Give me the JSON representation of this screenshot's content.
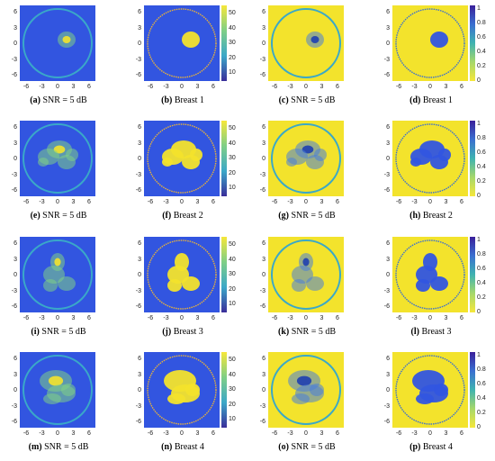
{
  "colors": {
    "cold": "#3255e0",
    "warm": "#f3e32c",
    "ring": "#3aa8c8"
  },
  "ticks": {
    "y": [
      "6",
      "3",
      "0",
      "-3",
      "-6"
    ],
    "x": [
      "-6",
      "-3",
      "0",
      "3",
      "6"
    ],
    "cbar_sigma": [
      "50",
      "40",
      "30",
      "20",
      "10"
    ],
    "cbar_ratio": [
      "1",
      "0.8",
      "0.6",
      "0.4",
      "0.2",
      "0"
    ]
  },
  "panels": [
    {
      "tag": "(a)",
      "text": "SNR = 5 dB",
      "kind": "recon",
      "bg": "cold"
    },
    {
      "tag": "(b)",
      "text": "Breast 1",
      "kind": "truth",
      "bg": "cold",
      "cbar": "sigma"
    },
    {
      "tag": "(c)",
      "text": "SNR = 5 dB",
      "kind": "recon",
      "bg": "warm"
    },
    {
      "tag": "(d)",
      "text": "Breast 1",
      "kind": "truth",
      "bg": "warm",
      "cbar": "ratio"
    },
    {
      "tag": "(e)",
      "text": "SNR = 5 dB",
      "kind": "recon",
      "bg": "cold"
    },
    {
      "tag": "(f)",
      "text": "Breast 2",
      "kind": "truth",
      "bg": "cold",
      "cbar": "sigma"
    },
    {
      "tag": "(g)",
      "text": "SNR = 5 dB",
      "kind": "recon",
      "bg": "warm"
    },
    {
      "tag": "(h)",
      "text": "Breast 2",
      "kind": "truth",
      "bg": "warm",
      "cbar": "ratio"
    },
    {
      "tag": "(i)",
      "text": "SNR = 5 dB",
      "kind": "recon",
      "bg": "cold"
    },
    {
      "tag": "(j)",
      "text": "Breast 3",
      "kind": "truth",
      "bg": "cold",
      "cbar": "sigma"
    },
    {
      "tag": "(k)",
      "text": "SNR = 5 dB",
      "kind": "recon",
      "bg": "warm"
    },
    {
      "tag": "(l)",
      "text": "Breast 3",
      "kind": "truth",
      "bg": "warm",
      "cbar": "ratio"
    },
    {
      "tag": "(m)",
      "text": "SNR = 5 dB",
      "kind": "recon",
      "bg": "cold"
    },
    {
      "tag": "(n)",
      "text": "Breast 4",
      "kind": "truth",
      "bg": "cold",
      "cbar": "sigma"
    },
    {
      "tag": "(o)",
      "text": "SNR = 5 dB",
      "kind": "recon",
      "bg": "warm"
    },
    {
      "tag": "(p)",
      "text": "Breast 4",
      "kind": "truth",
      "bg": "warm",
      "cbar": "ratio"
    }
  ]
}
